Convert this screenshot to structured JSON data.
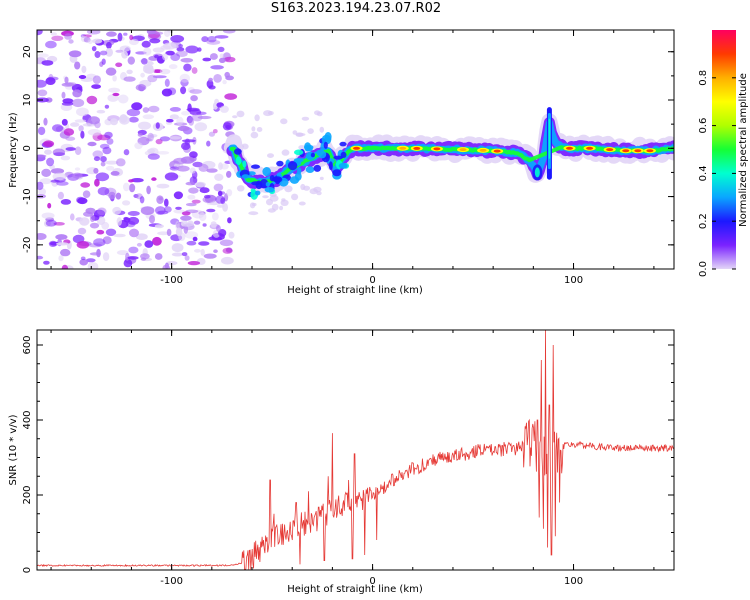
{
  "title": "S163.2023.194.23.07.R02",
  "colors": {
    "snr_line": "#e53935",
    "axis": "#000000",
    "colorbar_stops": [
      "#e3d6f7",
      "#7a22ff",
      "#1c18ff",
      "#0aa6ff",
      "#00ffd0",
      "#15ff35",
      "#b0ff00",
      "#ffff00",
      "#ffb000",
      "#ff3a00",
      "#ff005f"
    ]
  },
  "chart_data": [
    {
      "type": "heatmap",
      "xlabel": "Height of straight line (km)",
      "ylabel": "Frequency (Hz)",
      "xlim": [
        -167,
        150
      ],
      "ylim": [
        -25,
        24.5
      ],
      "xticks": [
        -100,
        0,
        100
      ],
      "xtick_labels": [
        "-100",
        "0",
        "100"
      ],
      "yticks": [
        -20,
        -10,
        0,
        10,
        20
      ],
      "ytick_labels": [
        "-20",
        "-10",
        "0",
        "10",
        "20"
      ],
      "grid": false,
      "noise_region_x": [
        -167,
        -70
      ],
      "ridge": [
        {
          "x": -68,
          "y": -1.5
        },
        {
          "x": -62,
          "y": -6.5
        },
        {
          "x": -55,
          "y": -7
        },
        {
          "x": -48,
          "y": -6.5
        },
        {
          "x": -42,
          "y": -4.5
        },
        {
          "x": -35,
          "y": -3
        },
        {
          "x": -28,
          "y": -1.5
        },
        {
          "x": -22,
          "y": -0.5
        },
        {
          "x": -18,
          "y": -4
        },
        {
          "x": -14,
          "y": -1.5
        },
        {
          "x": -10,
          "y": 0
        },
        {
          "x": 0,
          "y": 0
        },
        {
          "x": 20,
          "y": 0
        },
        {
          "x": 40,
          "y": -0.2
        },
        {
          "x": 60,
          "y": -0.5
        },
        {
          "x": 72,
          "y": -1
        },
        {
          "x": 78,
          "y": -2.5
        },
        {
          "x": 82,
          "y": -5
        },
        {
          "x": 85,
          "y": -2
        },
        {
          "x": 88,
          "y": 5
        },
        {
          "x": 91,
          "y": 1
        },
        {
          "x": 95,
          "y": 0
        },
        {
          "x": 110,
          "y": 0
        },
        {
          "x": 125,
          "y": -0.5
        },
        {
          "x": 140,
          "y": -0.5
        },
        {
          "x": 150,
          "y": 0
        }
      ],
      "colorbar": {
        "label": "Normalized spectral amplitude",
        "range": [
          0,
          1
        ],
        "ticks": [
          0.0,
          0.2,
          0.4,
          0.6,
          0.8
        ],
        "tick_labels": [
          "0.0",
          "0.2",
          "0.4",
          "0.6",
          "0.8"
        ]
      }
    },
    {
      "type": "line",
      "xlabel": "Height of straight line (km)",
      "ylabel": "SNR (10 * v/v)",
      "xlim": [
        -167,
        150
      ],
      "ylim": [
        0,
        640
      ],
      "xticks": [
        -100,
        0,
        100
      ],
      "xtick_labels": [
        "-100",
        "0",
        "100"
      ],
      "yticks": [
        0,
        200,
        400,
        600
      ],
      "ytick_labels": [
        "0",
        "200",
        "400",
        "600"
      ],
      "grid": false,
      "series": [
        {
          "values": [
            [
              -167,
              12
            ],
            [
              -150,
              12
            ],
            [
              -130,
              12
            ],
            [
              -110,
              12
            ],
            [
              -90,
              12
            ],
            [
              -75,
              12
            ],
            [
              -68,
              14
            ],
            [
              -62,
              25
            ],
            [
              -55,
              60
            ],
            [
              -50,
              95
            ],
            [
              -45,
              100
            ],
            [
              -40,
              110
            ],
            [
              -35,
              120
            ],
            [
              -30,
              130
            ],
            [
              -25,
              145
            ],
            [
              -20,
              160
            ],
            [
              -15,
              170
            ],
            [
              -10,
              180
            ],
            [
              -5,
              195
            ],
            [
              0,
              205
            ],
            [
              5,
              220
            ],
            [
              10,
              240
            ],
            [
              15,
              255
            ],
            [
              20,
              270
            ],
            [
              30,
              290
            ],
            [
              40,
              305
            ],
            [
              50,
              315
            ],
            [
              60,
              320
            ],
            [
              70,
              325
            ],
            [
              75,
              330
            ],
            [
              80,
              335
            ],
            [
              85,
              320
            ],
            [
              90,
              305
            ],
            [
              95,
              330
            ],
            [
              100,
              335
            ],
            [
              110,
              330
            ],
            [
              120,
              325
            ],
            [
              130,
              325
            ],
            [
              140,
              325
            ],
            [
              150,
              325
            ]
          ]
        }
      ],
      "spikes": [
        [
          -51,
          240
        ],
        [
          -49,
          150
        ],
        [
          -38,
          180
        ],
        [
          -32,
          210
        ],
        [
          -26,
          160
        ],
        [
          -22,
          250
        ],
        [
          -20,
          365
        ],
        [
          -16,
          150
        ],
        [
          -12,
          240
        ],
        [
          -9,
          310
        ],
        [
          -5,
          160
        ],
        [
          82,
          400
        ],
        [
          84,
          560
        ],
        [
          86,
          640
        ],
        [
          88,
          440
        ],
        [
          90,
          600
        ],
        [
          92,
          260
        ]
      ],
      "dips": [
        [
          -36,
          15
        ],
        [
          -24,
          25
        ],
        [
          -10,
          30
        ],
        [
          -4,
          40
        ],
        [
          2,
          80
        ],
        [
          83,
          140
        ],
        [
          85,
          110
        ],
        [
          87,
          60
        ],
        [
          89,
          40
        ],
        [
          91,
          90
        ],
        [
          93,
          180
        ]
      ]
    }
  ]
}
